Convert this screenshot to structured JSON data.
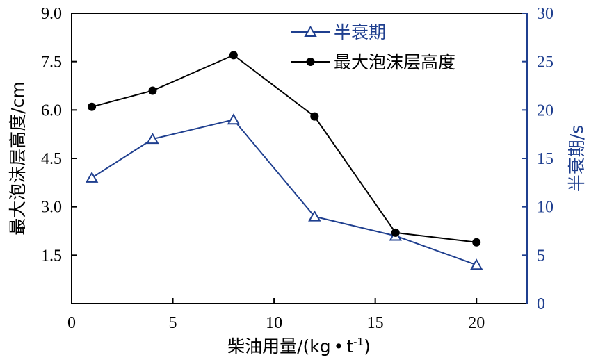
{
  "chart_data": {
    "type": "line",
    "x": [
      1,
      4,
      8,
      12,
      16,
      20
    ],
    "xlim": [
      0,
      22.5
    ],
    "xticks": [
      0,
      5,
      10,
      15,
      20
    ],
    "xlabel_main": "柴油用量/(kg",
    "xlabel_dot": "•",
    "xlabel_t": "t",
    "xlabel_sup": "-1",
    "xlabel_close": ")",
    "ylabel_left": "最大泡沫层高度/cm",
    "ylabel_right": "半衰期/s",
    "ylim_left": [
      0,
      9
    ],
    "ylim_right": [
      0,
      30
    ],
    "yticks_left": [
      "1.5",
      "3.0",
      "4.5",
      "6.0",
      "7.5",
      "9.0"
    ],
    "yticks_right": [
      "0",
      "5",
      "10",
      "15",
      "20",
      "25",
      "30"
    ],
    "grid": false,
    "legend_position": "top-right",
    "series": [
      {
        "name": "半衰期",
        "axis": "right",
        "marker": "open-triangle",
        "color": "#1f3f8f",
        "values": [
          13,
          17,
          19,
          9,
          7,
          4
        ]
      },
      {
        "name": "最大泡沫层高度",
        "axis": "left",
        "marker": "filled-circle",
        "color": "#000000",
        "values": [
          6.1,
          6.6,
          7.7,
          5.8,
          2.2,
          1.9
        ]
      }
    ]
  }
}
